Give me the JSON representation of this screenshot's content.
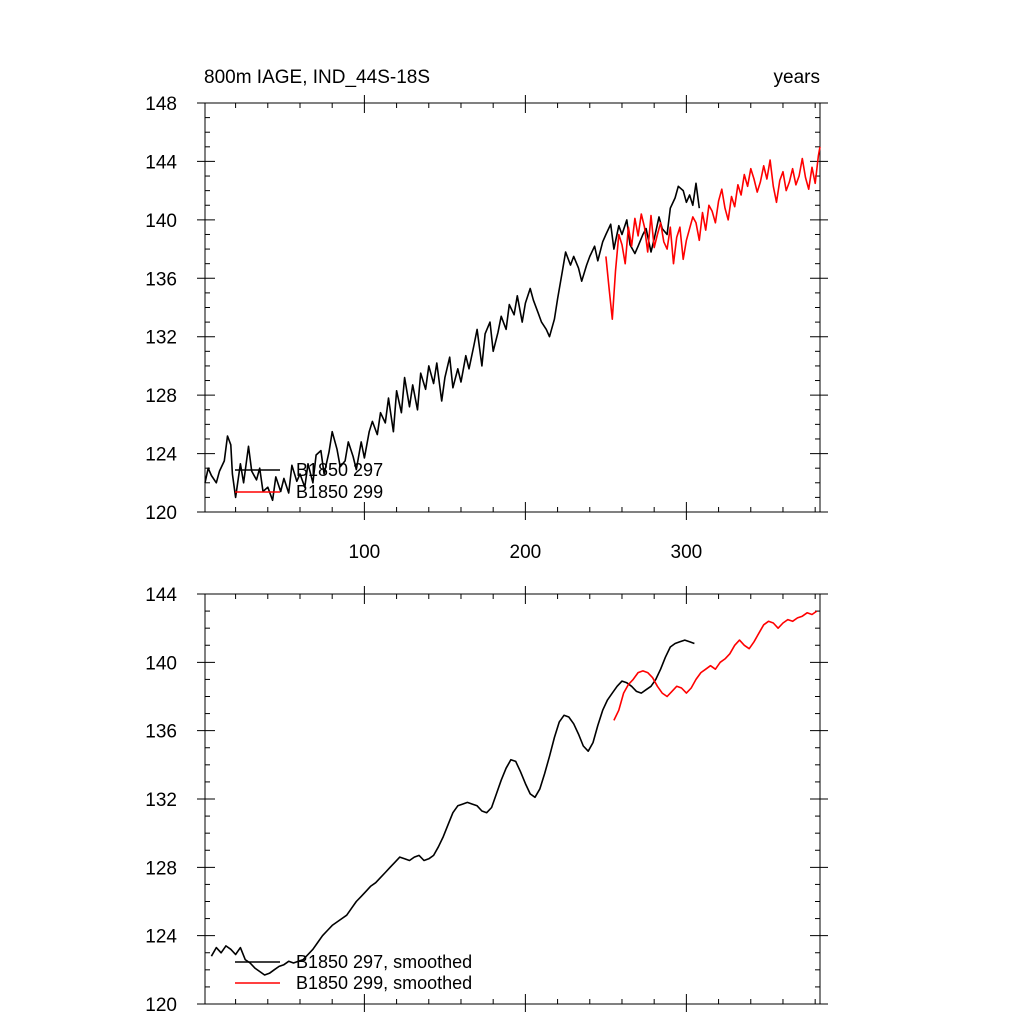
{
  "chart_data": [
    {
      "type": "line",
      "title": "800m IAGE, IND_44S-18S",
      "units": "years",
      "xlim": [
        1,
        383
      ],
      "ylim": [
        120,
        148
      ],
      "x_ticks": [
        100,
        200,
        300
      ],
      "y_ticks": [
        120,
        124,
        128,
        132,
        136,
        140,
        144,
        148
      ],
      "grid": false,
      "legend_position": "bottom-left",
      "series": [
        {
          "name": "B1850 297",
          "color": "#000000",
          "x": [
            1,
            3,
            5,
            8,
            10,
            13,
            15,
            17,
            18,
            20,
            23,
            25,
            28,
            30,
            33,
            35,
            37,
            40,
            43,
            45,
            48,
            50,
            53,
            55,
            58,
            60,
            63,
            65,
            68,
            70,
            73,
            75,
            78,
            80,
            83,
            85,
            88,
            90,
            93,
            95,
            98,
            100,
            103,
            105,
            108,
            110,
            113,
            115,
            118,
            120,
            123,
            125,
            128,
            130,
            133,
            135,
            138,
            140,
            143,
            145,
            148,
            150,
            153,
            155,
            158,
            160,
            163,
            165,
            168,
            170,
            173,
            175,
            178,
            180,
            183,
            185,
            188,
            190,
            193,
            195,
            198,
            200,
            203,
            205,
            208,
            210,
            213,
            215,
            218,
            220,
            223,
            225,
            228,
            230,
            233,
            235,
            238,
            240,
            243,
            245,
            248,
            250,
            253,
            255,
            258,
            260,
            263,
            265,
            268,
            270,
            273,
            275,
            278,
            280,
            283,
            285,
            288,
            290,
            293,
            295,
            298,
            300,
            302,
            304,
            306,
            308
          ],
          "values": [
            122.0,
            123.0,
            122.5,
            122.0,
            122.8,
            123.5,
            125.2,
            124.6,
            122.6,
            121.0,
            123.3,
            122.0,
            124.5,
            122.8,
            122.2,
            123.0,
            121.4,
            121.7,
            120.8,
            122.4,
            121.4,
            122.3,
            121.3,
            123.2,
            122.1,
            122.6,
            121.7,
            123.3,
            122.0,
            123.9,
            124.2,
            122.6,
            124.1,
            125.5,
            124.3,
            123.1,
            123.5,
            124.8,
            123.8,
            122.9,
            124.8,
            123.7,
            125.5,
            126.2,
            125.3,
            126.8,
            126.1,
            127.8,
            125.5,
            128.3,
            126.8,
            129.2,
            127.2,
            128.7,
            127.0,
            129.5,
            128.4,
            130.0,
            128.8,
            130.2,
            127.6,
            129.2,
            130.6,
            128.5,
            129.8,
            128.9,
            130.7,
            129.8,
            131.4,
            132.5,
            130.0,
            132.2,
            133.0,
            131.0,
            132.3,
            133.4,
            132.5,
            134.2,
            133.5,
            134.8,
            133.0,
            134.3,
            135.3,
            134.5,
            133.6,
            133.0,
            132.5,
            132.0,
            133.2,
            134.6,
            136.5,
            137.8,
            136.9,
            137.5,
            136.7,
            135.8,
            136.9,
            137.5,
            138.2,
            137.2,
            138.5,
            139.0,
            139.7,
            138.0,
            139.6,
            139.0,
            140.0,
            138.3,
            137.7,
            138.2,
            139.0,
            139.4,
            137.8,
            138.7,
            140.2,
            139.4,
            139.0,
            140.8,
            141.5,
            142.3,
            142.0,
            141.2,
            141.7,
            141.0,
            142.5,
            140.8
          ],
          "approx": true
        },
        {
          "name": "B1850 299",
          "color": "#ff0000",
          "x": [
            250,
            252,
            254,
            256,
            258,
            260,
            262,
            264,
            266,
            268,
            270,
            272,
            274,
            276,
            278,
            280,
            282,
            284,
            286,
            288,
            290,
            292,
            294,
            296,
            298,
            300,
            302,
            304,
            306,
            308,
            310,
            312,
            314,
            316,
            318,
            320,
            322,
            324,
            326,
            328,
            330,
            332,
            334,
            336,
            338,
            340,
            342,
            344,
            346,
            348,
            350,
            352,
            354,
            356,
            358,
            360,
            362,
            364,
            366,
            368,
            370,
            372,
            374,
            376,
            378,
            380,
            382,
            383
          ],
          "values": [
            137.5,
            135.3,
            133.2,
            136.5,
            139.0,
            138.3,
            137.0,
            139.5,
            138.2,
            140.1,
            138.9,
            140.4,
            139.5,
            137.8,
            140.3,
            138.1,
            139.0,
            139.8,
            138.5,
            138.0,
            139.5,
            137.0,
            138.8,
            139.5,
            137.3,
            138.6,
            139.4,
            140.2,
            139.8,
            138.6,
            140.5,
            139.3,
            141.0,
            140.6,
            139.8,
            141.3,
            142.1,
            140.8,
            140.0,
            141.6,
            140.9,
            142.4,
            141.7,
            143.1,
            142.3,
            143.5,
            142.8,
            141.9,
            142.6,
            143.7,
            142.8,
            144.1,
            142.3,
            141.2,
            142.7,
            143.3,
            142.0,
            142.6,
            143.5,
            142.4,
            143.0,
            144.2,
            142.9,
            142.1,
            143.6,
            142.5,
            144.4,
            145.0
          ],
          "approx": true
        }
      ]
    },
    {
      "type": "line",
      "title": "",
      "xlim": [
        1,
        383
      ],
      "ylim": [
        120,
        144
      ],
      "y_ticks": [
        120,
        124,
        128,
        132,
        136,
        140,
        144
      ],
      "grid": false,
      "legend_position": "bottom-left",
      "series": [
        {
          "name": "B1850 297, smoothed",
          "color": "#000000",
          "x": [
            5,
            8,
            11,
            14,
            17,
            20,
            23,
            26,
            29,
            32,
            35,
            38,
            41,
            44,
            47,
            50,
            53,
            56,
            59,
            62,
            65,
            68,
            71,
            74,
            77,
            80,
            83,
            86,
            89,
            92,
            95,
            98,
            101,
            104,
            107,
            110,
            113,
            116,
            119,
            122,
            125,
            128,
            131,
            134,
            137,
            140,
            143,
            146,
            149,
            152,
            155,
            158,
            161,
            164,
            167,
            170,
            173,
            176,
            179,
            182,
            185,
            188,
            191,
            194,
            197,
            200,
            203,
            206,
            209,
            212,
            215,
            218,
            221,
            224,
            227,
            230,
            233,
            236,
            239,
            242,
            245,
            248,
            251,
            254,
            257,
            260,
            263,
            266,
            269,
            272,
            275,
            278,
            281,
            284,
            287,
            290,
            293,
            296,
            299,
            302,
            305
          ],
          "values": [
            122.8,
            123.3,
            123.0,
            123.4,
            123.2,
            122.9,
            123.3,
            122.6,
            122.4,
            122.1,
            121.9,
            121.7,
            121.8,
            122.0,
            122.2,
            122.3,
            122.5,
            122.4,
            122.5,
            122.6,
            122.9,
            123.2,
            123.6,
            124.0,
            124.3,
            124.6,
            124.8,
            125.0,
            125.2,
            125.6,
            126.0,
            126.3,
            126.6,
            126.9,
            127.1,
            127.4,
            127.7,
            128.0,
            128.3,
            128.6,
            128.5,
            128.4,
            128.6,
            128.7,
            128.4,
            128.5,
            128.7,
            129.2,
            129.8,
            130.5,
            131.2,
            131.6,
            131.7,
            131.8,
            131.7,
            131.6,
            131.3,
            131.2,
            131.5,
            132.3,
            133.1,
            133.8,
            134.3,
            134.2,
            133.6,
            132.9,
            132.3,
            132.1,
            132.6,
            133.5,
            134.5,
            135.6,
            136.5,
            136.9,
            136.8,
            136.4,
            135.8,
            135.1,
            134.8,
            135.3,
            136.3,
            137.2,
            137.8,
            138.2,
            138.6,
            138.9,
            138.8,
            138.6,
            138.3,
            138.2,
            138.4,
            138.6,
            139.0,
            139.6,
            140.3,
            140.9,
            141.1,
            141.2,
            141.3,
            141.2,
            141.1
          ],
          "approx": true
        },
        {
          "name": "B1850 299, smoothed",
          "color": "#ff0000",
          "x": [
            255,
            258,
            261,
            264,
            267,
            270,
            273,
            276,
            279,
            282,
            285,
            288,
            291,
            294,
            297,
            300,
            303,
            306,
            309,
            312,
            315,
            318,
            321,
            324,
            327,
            330,
            333,
            336,
            339,
            342,
            345,
            348,
            351,
            354,
            357,
            360,
            363,
            366,
            369,
            372,
            375,
            378,
            381
          ],
          "values": [
            136.6,
            137.2,
            138.2,
            138.7,
            139.0,
            139.4,
            139.5,
            139.4,
            139.1,
            138.6,
            138.2,
            138.0,
            138.3,
            138.6,
            138.5,
            138.2,
            138.5,
            139.0,
            139.4,
            139.6,
            139.8,
            139.6,
            140.0,
            140.2,
            140.5,
            141.0,
            141.3,
            141.0,
            140.8,
            141.2,
            141.7,
            142.2,
            142.4,
            142.3,
            142.0,
            142.3,
            142.5,
            142.4,
            142.6,
            142.7,
            142.9,
            142.8,
            143.0
          ],
          "approx": true
        }
      ]
    }
  ]
}
